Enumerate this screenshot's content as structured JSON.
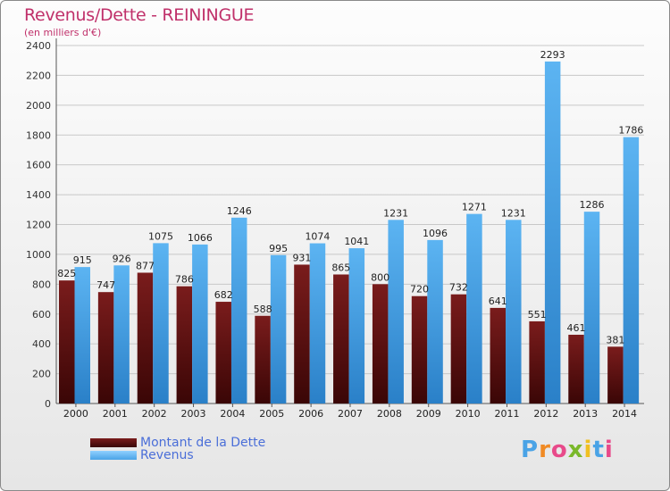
{
  "title": "Revenus/Dette - REININGUE",
  "subtitle": "(en milliers d'€)",
  "brand": "Proxiti",
  "colors": {
    "dette": "#7a1c1c",
    "revenus": "#4aa3e6",
    "title": "#c0306a",
    "legend_text": "#4a6ed8"
  },
  "legend": {
    "dette": "Montant de la Dette",
    "revenus": "Revenus"
  },
  "chart_data": {
    "type": "bar",
    "categories": [
      "2000",
      "2001",
      "2002",
      "2003",
      "2004",
      "2005",
      "2006",
      "2007",
      "2008",
      "2009",
      "2010",
      "2011",
      "2012",
      "2013",
      "2014"
    ],
    "series": [
      {
        "name": "Montant de la Dette",
        "values": [
          825,
          747,
          877,
          786,
          682,
          588,
          931,
          865,
          800,
          720,
          732,
          641,
          551,
          461,
          381
        ]
      },
      {
        "name": "Revenus",
        "values": [
          915,
          926,
          1075,
          1066,
          1246,
          995,
          1074,
          1041,
          1231,
          1096,
          1271,
          1231,
          2293,
          1286,
          1786
        ]
      }
    ],
    "yticks": [
      0,
      200,
      400,
      600,
      800,
      1000,
      1200,
      1400,
      1600,
      1800,
      2000,
      2200,
      2400
    ],
    "ylim": [
      0,
      2400
    ],
    "grid": true
  }
}
